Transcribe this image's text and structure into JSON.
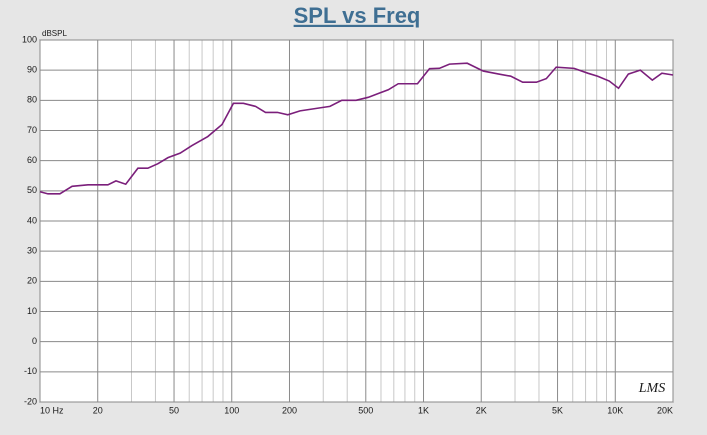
{
  "chart_data": {
    "type": "line",
    "title": "SPL vs Freq",
    "ylabel": "dBSPL",
    "logo": "LMS",
    "xscale": "log",
    "grid": true,
    "xlim": [
      10,
      20000
    ],
    "ylim": [
      -20,
      100
    ],
    "xticks": [
      {
        "value": 10,
        "label": "10 Hz"
      },
      20,
      50,
      100,
      200,
      500,
      {
        "value": 1000,
        "label": "1K"
      },
      {
        "value": 2000,
        "label": "2K"
      },
      {
        "value": 5000,
        "label": "5K"
      },
      {
        "value": 10000,
        "label": "10K"
      },
      {
        "value": 20000,
        "label": "20K"
      }
    ],
    "xminorticks": [
      30,
      40,
      60,
      70,
      80,
      90,
      300,
      400,
      600,
      700,
      800,
      900,
      3000,
      4000,
      6000,
      7000,
      8000,
      9000
    ],
    "yticks": [
      100,
      90,
      80,
      70,
      60,
      50,
      40,
      30,
      20,
      10,
      0,
      -10,
      -20
    ],
    "x": [
      10,
      11,
      12.7,
      14.7,
      17.8,
      22.6,
      24.9,
      28,
      32.4,
      36.5,
      41.2,
      46.5,
      53.8,
      62,
      75,
      89,
      102,
      115,
      133,
      150,
      173,
      196,
      227,
      288,
      325,
      375,
      445,
      515,
      595,
      655,
      738,
      930,
      1075,
      1210,
      1366,
      1690,
      2050,
      2470,
      2850,
      3290,
      3880,
      4370,
      4920,
      6100,
      7190,
      8100,
      9300,
      10400,
      11700,
      13500,
      15600,
      17500,
      20000
    ],
    "series": [
      {
        "color": "#7b1f7b",
        "values": [
          49.7,
          49,
          49,
          51.5,
          52,
          52,
          53.3,
          52.2,
          57.5,
          57.5,
          59,
          61,
          62.5,
          65,
          68,
          72,
          79,
          79,
          78,
          76,
          76,
          75.2,
          76.5,
          77.5,
          78,
          80,
          80,
          81,
          82.5,
          83.5,
          85.5,
          85.5,
          90.5,
          90.6,
          92,
          92.3,
          89.7,
          88.7,
          88,
          86,
          86,
          87.2,
          91,
          90.6,
          89,
          88,
          86.4,
          84,
          88.7,
          90,
          86.7,
          89,
          88.4
        ]
      }
    ]
  }
}
